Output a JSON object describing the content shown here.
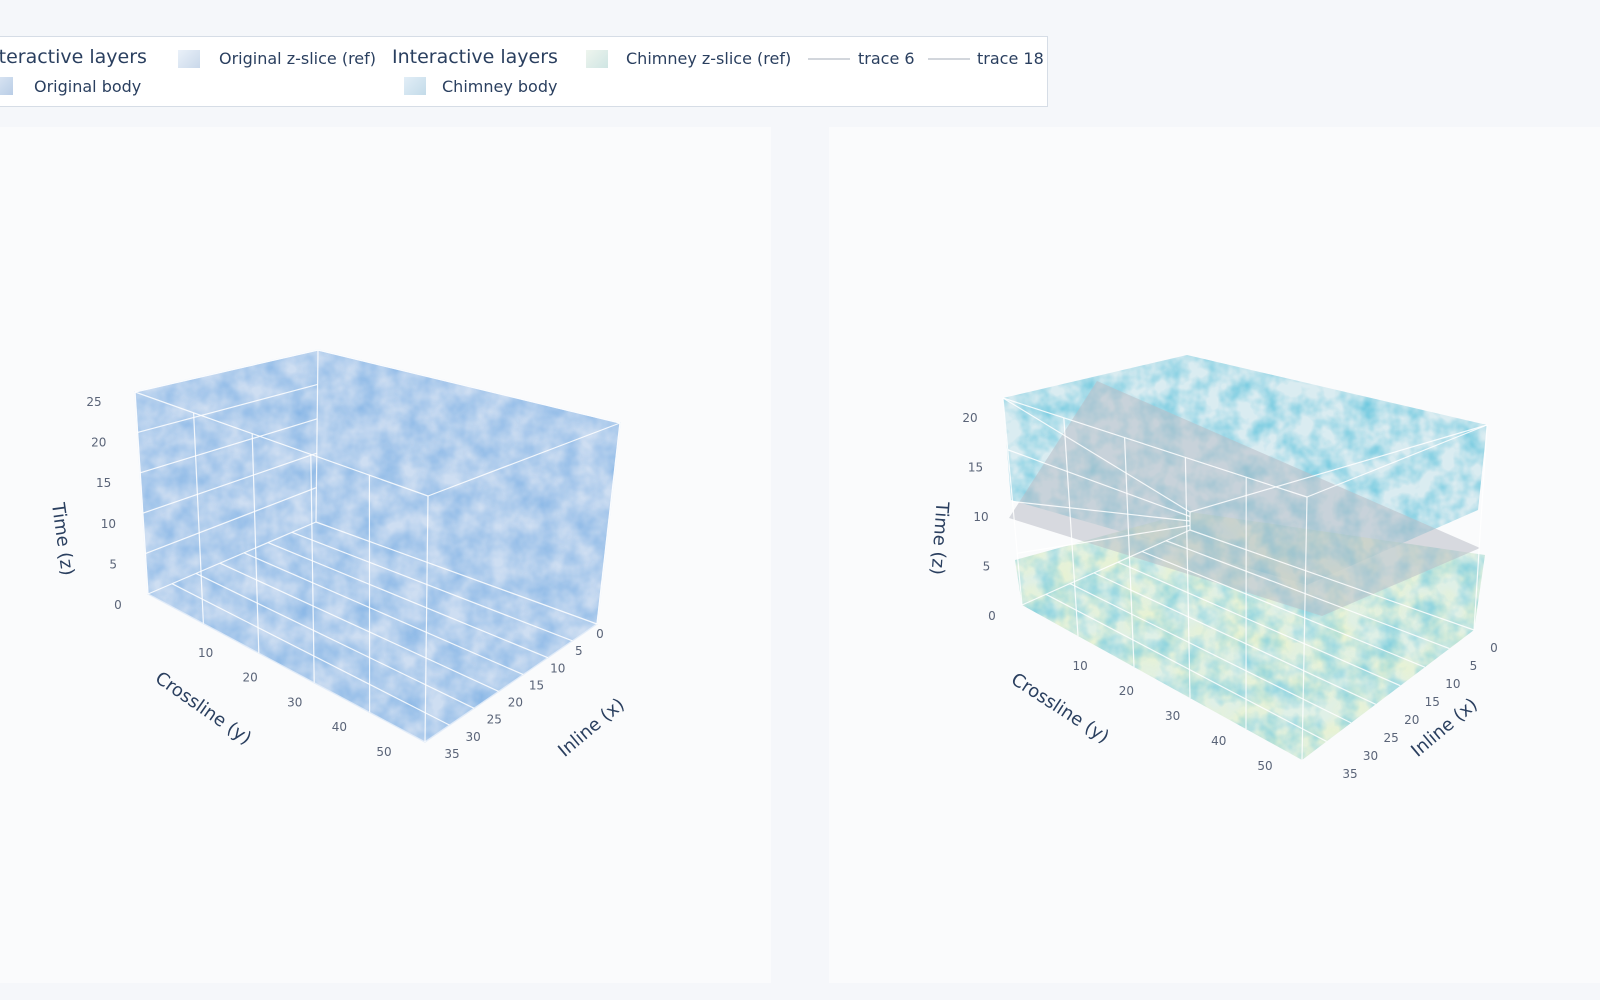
{
  "legend": {
    "group1_title": "Interactive layers",
    "group1_slice": "Original z-slice (ref)",
    "group1_body": "Original body",
    "group2_title": "Interactive layers",
    "group2_slice": "Chimney z-slice (ref)",
    "group2_body": "Chimney body",
    "trace_a": "trace 6",
    "trace_b": "trace 18"
  },
  "chart_data": [
    {
      "type": "volume",
      "xlabel": "Inline (x)",
      "ylabel": "Crossline (y)",
      "zlabel": "Time (z)",
      "x_ticks": [
        0,
        5,
        10,
        15,
        20,
        25,
        30,
        35
      ],
      "y_ticks": [
        10,
        20,
        30,
        40,
        50
      ],
      "z_ticks": [
        0,
        5,
        10,
        15,
        20,
        25
      ],
      "xlim": [
        0,
        35
      ],
      "ylim": [
        0,
        50
      ],
      "zlim": [
        0,
        25
      ],
      "colorscale": "Blues",
      "colors": [
        "#2f6fc2",
        "#7fa9de",
        "#c9dcf2"
      ],
      "legend_entries": [
        "Original z-slice (ref)",
        "Original body"
      ]
    },
    {
      "type": "volume",
      "xlabel": "Inline (x)",
      "ylabel": "Crossline (y)",
      "zlabel": "Time (z)",
      "x_ticks": [
        0,
        5,
        10,
        15,
        20,
        25,
        30,
        35
      ],
      "y_ticks": [
        10,
        20,
        30,
        40,
        50
      ],
      "z_ticks": [
        0,
        5,
        10,
        15,
        20
      ],
      "xlim": [
        0,
        35
      ],
      "ylim": [
        0,
        50
      ],
      "zlim": [
        0,
        20
      ],
      "colorscale": "YlGnBu",
      "colors": [
        "#2a7fb8",
        "#41b6c4",
        "#e0e89a"
      ],
      "reference_slice_z": 10,
      "legend_entries": [
        "Chimney z-slice (ref)",
        "Chimney body",
        "trace 6",
        "trace 18"
      ]
    }
  ]
}
